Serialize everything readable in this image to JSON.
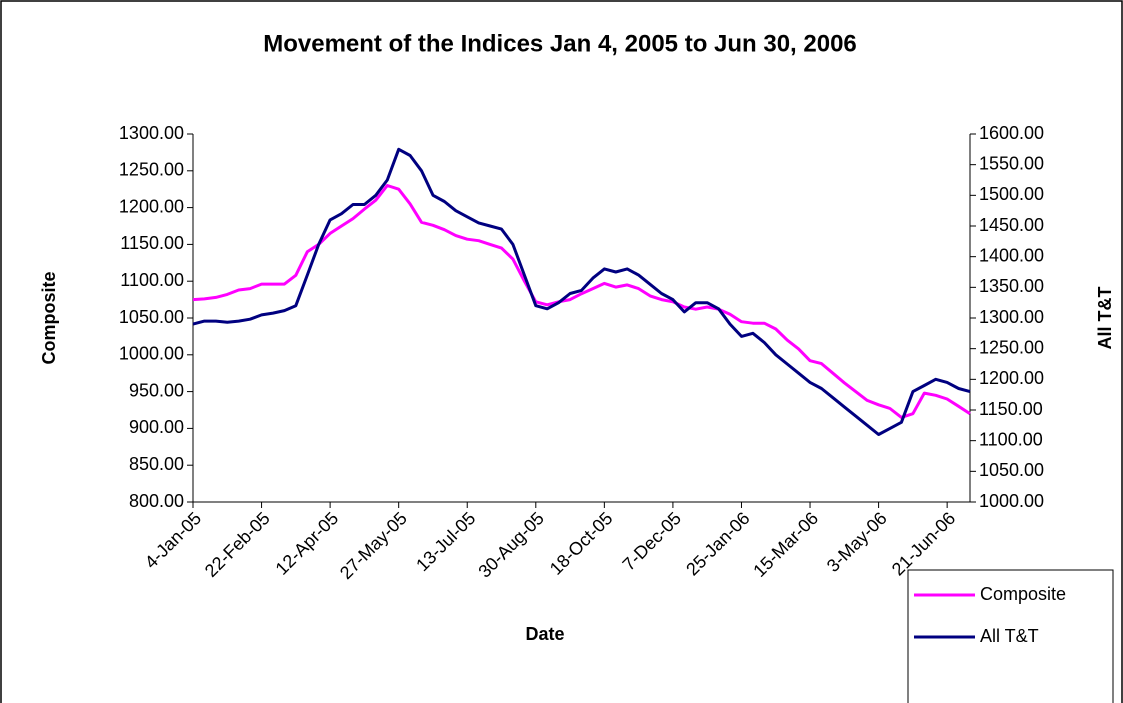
{
  "chart_data": {
    "type": "line",
    "title": "Movement of the Indices Jan 4, 2005 to Jun 30, 2006",
    "x_label": "Date",
    "y_label": "Composite",
    "y2_label": "All T&T",
    "categories": [
      "4-Jan-05",
      null,
      null,
      null,
      null,
      null,
      "22-Feb-05",
      null,
      null,
      null,
      null,
      null,
      "12-Apr-05",
      null,
      null,
      null,
      null,
      null,
      "27-May-05",
      null,
      null,
      null,
      null,
      null,
      "13-Jul-05",
      null,
      null,
      null,
      null,
      null,
      "30-Aug-05",
      null,
      null,
      null,
      null,
      null,
      "18-Oct-05",
      null,
      null,
      null,
      null,
      null,
      "7-Dec-05",
      null,
      null,
      null,
      null,
      null,
      "25-Jan-06",
      null,
      null,
      null,
      null,
      null,
      "15-Mar-06",
      null,
      null,
      null,
      null,
      null,
      "3-May-06",
      null,
      null,
      null,
      null,
      null,
      "21-Jun-06",
      null,
      null
    ],
    "series": [
      {
        "name": "Composite",
        "color": "#ff00ff",
        "axis": "y",
        "values": [
          1075,
          1076,
          1078,
          1082,
          1088,
          1090,
          1096,
          1096,
          1096,
          1108,
          1140,
          1150,
          1165,
          1175,
          1185,
          1198,
          1210,
          1230,
          1225,
          1205,
          1180,
          1176,
          1170,
          1162,
          1157,
          1155,
          1150,
          1145,
          1130,
          1100,
          1072,
          1068,
          1072,
          1075,
          1083,
          1090,
          1097,
          1092,
          1095,
          1090,
          1080,
          1075,
          1072,
          1065,
          1062,
          1065,
          1062,
          1055,
          1045,
          1043,
          1043,
          1035,
          1020,
          1008,
          992,
          988,
          975,
          962,
          950,
          938,
          932,
          927,
          915,
          920,
          948,
          945,
          940,
          930,
          920
        ]
      },
      {
        "name": "All T&T",
        "color": "#000080",
        "axis": "y2",
        "values": [
          1290,
          1295,
          1295,
          1293,
          1295,
          1298,
          1305,
          1308,
          1312,
          1320,
          1370,
          1420,
          1460,
          1470,
          1485,
          1485,
          1500,
          1525,
          1575,
          1565,
          1540,
          1500,
          1490,
          1475,
          1465,
          1455,
          1450,
          1445,
          1420,
          1370,
          1320,
          1315,
          1325,
          1340,
          1345,
          1365,
          1380,
          1375,
          1380,
          1370,
          1355,
          1340,
          1330,
          1310,
          1325,
          1325,
          1315,
          1290,
          1270,
          1275,
          1260,
          1240,
          1225,
          1210,
          1195,
          1185,
          1170,
          1155,
          1140,
          1125,
          1110,
          1120,
          1130,
          1180,
          1190,
          1200,
          1195,
          1185,
          1180
        ]
      }
    ],
    "ylim": [
      800,
      1300
    ],
    "yticks": [
      {
        "value": 800,
        "label": "800.00"
      },
      {
        "value": 850,
        "label": "850.00"
      },
      {
        "value": 900,
        "label": "900.00"
      },
      {
        "value": 950,
        "label": "950.00"
      },
      {
        "value": 1000,
        "label": "1000.00"
      },
      {
        "value": 1050,
        "label": "1050.00"
      },
      {
        "value": 1100,
        "label": "1100.00"
      },
      {
        "value": 1150,
        "label": "1150.00"
      },
      {
        "value": 1200,
        "label": "1200.00"
      },
      {
        "value": 1250,
        "label": "1250.00"
      },
      {
        "value": 1300,
        "label": "1300.00"
      }
    ],
    "y2lim": [
      1000,
      1600
    ],
    "y2ticks": [
      {
        "value": 1000,
        "label": "1000.00"
      },
      {
        "value": 1050,
        "label": "1050.00"
      },
      {
        "value": 1100,
        "label": "1100.00"
      },
      {
        "value": 1150,
        "label": "1150.00"
      },
      {
        "value": 1200,
        "label": "1200.00"
      },
      {
        "value": 1250,
        "label": "1250.00"
      },
      {
        "value": 1300,
        "label": "1300.00"
      },
      {
        "value": 1350,
        "label": "1350.00"
      },
      {
        "value": 1400,
        "label": "1400.00"
      },
      {
        "value": 1450,
        "label": "1450.00"
      },
      {
        "value": 1500,
        "label": "1500.00"
      },
      {
        "value": 1550,
        "label": "1550.00"
      },
      {
        "value": 1600,
        "label": "1600.00"
      }
    ],
    "grid": false,
    "legend": "bottom-right"
  }
}
